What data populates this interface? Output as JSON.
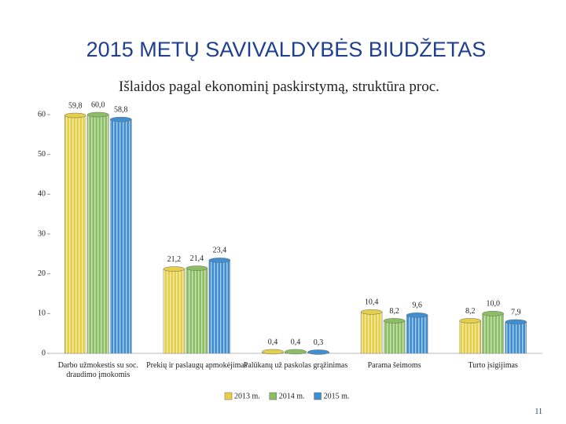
{
  "chart_data": {
    "type": "bar",
    "title": "2015 METŲ SAVIVALDYBĖS BIUDŽETAS",
    "subtitle": "Išlaidos pagal ekonominį paskirstymą, struktūra proc.",
    "page_number": "11",
    "categories": [
      "Darbo užmokestis su soc. draudimo įmokomis",
      "Prekių ir paslaugų apmokėjimas",
      "Palūkanų už paskolas grąžinimas",
      "Parama šeimoms",
      "Turto įsigijimas"
    ],
    "series": [
      {
        "name": "2013 m.",
        "color": "#e6d04a",
        "values": [
          59.8,
          21.2,
          0.4,
          10.4,
          8.2
        ],
        "value_labels": [
          "59,8",
          "21,2",
          "0,4",
          "10,4",
          "8,2"
        ]
      },
      {
        "name": "2014 m.",
        "color": "#8cbf64",
        "values": [
          60.0,
          21.4,
          0.4,
          8.2,
          10.0
        ],
        "value_labels": [
          "60,0",
          "21,4",
          "0,4",
          "8,2",
          "10,0"
        ]
      },
      {
        "name": "2015 m.",
        "color": "#3f8fd0",
        "values": [
          58.8,
          23.4,
          0.3,
          9.6,
          7.9
        ],
        "value_labels": [
          "58,8",
          "23,4",
          "0,3",
          "9,6",
          "7,9"
        ]
      }
    ],
    "ylim": [
      0,
      60
    ],
    "yticks": [
      0,
      10,
      20,
      30,
      40,
      50,
      60
    ],
    "grid": false,
    "legend": "bottom"
  }
}
